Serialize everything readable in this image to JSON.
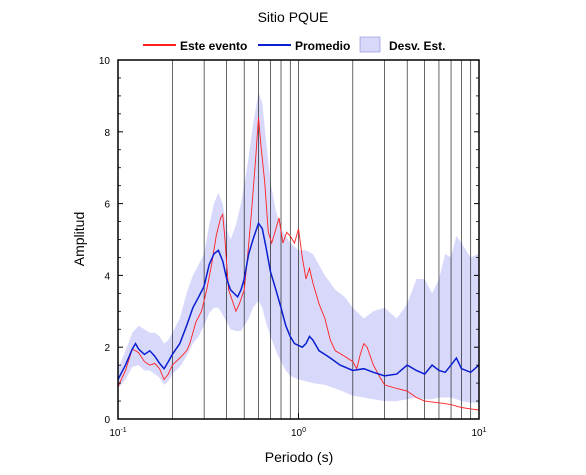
{
  "chart_data": {
    "type": "line",
    "title": "Sitio PQUE",
    "xlabel": "Periodo (s)",
    "ylabel": "Amplitud",
    "xscale": "log",
    "xlim": [
      0.1,
      10
    ],
    "ylim": [
      0,
      10
    ],
    "x_tick_labels": [
      {
        "base": "10",
        "exp": "-1"
      },
      {
        "base": "10",
        "exp": "0"
      },
      {
        "base": "10",
        "exp": "1"
      }
    ],
    "y_ticks": [
      0,
      2,
      4,
      6,
      8,
      10
    ],
    "grid": "vertical log lines",
    "legend_position": "top",
    "series": [
      {
        "name": "Este evento",
        "color": "#ff2020",
        "kind": "line",
        "points": [
          [
            0.1,
            0.9
          ],
          [
            0.11,
            1.35
          ],
          [
            0.12,
            1.95
          ],
          [
            0.13,
            1.85
          ],
          [
            0.14,
            1.6
          ],
          [
            0.15,
            1.5
          ],
          [
            0.16,
            1.55
          ],
          [
            0.17,
            1.4
          ],
          [
            0.18,
            1.1
          ],
          [
            0.19,
            1.25
          ],
          [
            0.2,
            1.5
          ],
          [
            0.22,
            1.7
          ],
          [
            0.24,
            1.9
          ],
          [
            0.25,
            2.1
          ],
          [
            0.27,
            2.7
          ],
          [
            0.29,
            3.0
          ],
          [
            0.31,
            3.6
          ],
          [
            0.33,
            4.3
          ],
          [
            0.35,
            5.1
          ],
          [
            0.37,
            5.6
          ],
          [
            0.38,
            5.7
          ],
          [
            0.39,
            5.1
          ],
          [
            0.41,
            3.6
          ],
          [
            0.43,
            3.3
          ],
          [
            0.45,
            3.0
          ],
          [
            0.47,
            3.2
          ],
          [
            0.5,
            3.6
          ],
          [
            0.52,
            4.4
          ],
          [
            0.55,
            5.8
          ],
          [
            0.58,
            7.3
          ],
          [
            0.6,
            8.4
          ],
          [
            0.62,
            7.6
          ],
          [
            0.65,
            6.6
          ],
          [
            0.68,
            5.2
          ],
          [
            0.71,
            4.9
          ],
          [
            0.74,
            5.2
          ],
          [
            0.78,
            5.6
          ],
          [
            0.82,
            4.9
          ],
          [
            0.86,
            5.2
          ],
          [
            0.9,
            5.1
          ],
          [
            0.95,
            4.9
          ],
          [
            1.0,
            5.3
          ],
          [
            1.05,
            4.5
          ],
          [
            1.1,
            3.9
          ],
          [
            1.15,
            4.2
          ],
          [
            1.2,
            3.8
          ],
          [
            1.3,
            3.2
          ],
          [
            1.4,
            2.8
          ],
          [
            1.5,
            2.2
          ],
          [
            1.6,
            1.9
          ],
          [
            1.8,
            1.75
          ],
          [
            2.0,
            1.6
          ],
          [
            2.1,
            1.4
          ],
          [
            2.2,
            1.8
          ],
          [
            2.3,
            2.1
          ],
          [
            2.4,
            2.0
          ],
          [
            2.6,
            1.5
          ],
          [
            2.8,
            1.2
          ],
          [
            3.0,
            0.95
          ],
          [
            3.5,
            0.85
          ],
          [
            4.0,
            0.78
          ],
          [
            4.5,
            0.6
          ],
          [
            5.0,
            0.5
          ],
          [
            6.0,
            0.45
          ],
          [
            7.0,
            0.4
          ],
          [
            8.0,
            0.32
          ],
          [
            9.0,
            0.28
          ],
          [
            10.0,
            0.25
          ]
        ]
      },
      {
        "name": "Promedio",
        "color": "#0a1fd0",
        "kind": "line",
        "points": [
          [
            0.1,
            1.1
          ],
          [
            0.11,
            1.5
          ],
          [
            0.12,
            1.95
          ],
          [
            0.125,
            2.1
          ],
          [
            0.13,
            1.95
          ],
          [
            0.14,
            1.8
          ],
          [
            0.15,
            1.9
          ],
          [
            0.16,
            1.75
          ],
          [
            0.17,
            1.55
          ],
          [
            0.18,
            1.4
          ],
          [
            0.19,
            1.6
          ],
          [
            0.2,
            1.8
          ],
          [
            0.22,
            2.1
          ],
          [
            0.24,
            2.6
          ],
          [
            0.26,
            3.1
          ],
          [
            0.28,
            3.4
          ],
          [
            0.3,
            3.7
          ],
          [
            0.32,
            4.3
          ],
          [
            0.34,
            4.6
          ],
          [
            0.36,
            4.7
          ],
          [
            0.38,
            4.4
          ],
          [
            0.4,
            3.9
          ],
          [
            0.42,
            3.6
          ],
          [
            0.44,
            3.5
          ],
          [
            0.46,
            3.4
          ],
          [
            0.48,
            3.6
          ],
          [
            0.5,
            3.9
          ],
          [
            0.53,
            4.6
          ],
          [
            0.56,
            5.0
          ],
          [
            0.6,
            5.45
          ],
          [
            0.63,
            5.3
          ],
          [
            0.66,
            4.8
          ],
          [
            0.7,
            4.1
          ],
          [
            0.75,
            3.6
          ],
          [
            0.8,
            3.1
          ],
          [
            0.85,
            2.6
          ],
          [
            0.9,
            2.3
          ],
          [
            0.95,
            2.1
          ],
          [
            1.0,
            2.05
          ],
          [
            1.05,
            2.0
          ],
          [
            1.1,
            2.1
          ],
          [
            1.15,
            2.3
          ],
          [
            1.2,
            2.2
          ],
          [
            1.3,
            1.9
          ],
          [
            1.4,
            1.8
          ],
          [
            1.5,
            1.7
          ],
          [
            1.7,
            1.5
          ],
          [
            2.0,
            1.35
          ],
          [
            2.3,
            1.4
          ],
          [
            2.6,
            1.3
          ],
          [
            3.0,
            1.2
          ],
          [
            3.5,
            1.25
          ],
          [
            4.0,
            1.5
          ],
          [
            4.5,
            1.35
          ],
          [
            5.0,
            1.25
          ],
          [
            5.5,
            1.5
          ],
          [
            6.0,
            1.35
          ],
          [
            6.5,
            1.3
          ],
          [
            7.0,
            1.5
          ],
          [
            7.5,
            1.7
          ],
          [
            8.0,
            1.4
          ],
          [
            9.0,
            1.3
          ],
          [
            10.0,
            1.5
          ]
        ]
      },
      {
        "name": "Desv. Est.",
        "color": "#d8d8fb",
        "kind": "band",
        "x": [
          0.1,
          0.11,
          0.12,
          0.13,
          0.14,
          0.15,
          0.16,
          0.17,
          0.18,
          0.19,
          0.2,
          0.22,
          0.24,
          0.26,
          0.28,
          0.3,
          0.32,
          0.34,
          0.36,
          0.38,
          0.4,
          0.42,
          0.45,
          0.48,
          0.5,
          0.53,
          0.56,
          0.6,
          0.63,
          0.66,
          0.7,
          0.75,
          0.8,
          0.85,
          0.9,
          1.0,
          1.1,
          1.2,
          1.4,
          1.6,
          1.8,
          2.0,
          2.3,
          2.6,
          3.0,
          3.5,
          4.0,
          4.5,
          5.0,
          5.5,
          6.0,
          6.5,
          7.0,
          7.5,
          8.0,
          9.0,
          10.0
        ],
        "upper": [
          1.4,
          1.9,
          2.4,
          2.6,
          2.5,
          2.4,
          2.4,
          2.3,
          2.1,
          2.2,
          2.4,
          2.8,
          3.5,
          4.0,
          4.3,
          4.6,
          5.4,
          6.0,
          6.3,
          6.0,
          5.3,
          5.0,
          5.4,
          6.0,
          6.5,
          7.3,
          8.2,
          9.1,
          8.8,
          7.8,
          6.6,
          5.8,
          5.3,
          5.1,
          4.9,
          4.7,
          4.7,
          4.6,
          4.0,
          3.6,
          3.4,
          3.1,
          2.8,
          3.0,
          3.1,
          2.8,
          3.2,
          3.9,
          3.9,
          3.5,
          3.9,
          4.6,
          4.5,
          5.1,
          4.9,
          4.5,
          4.6
        ],
        "lower": [
          0.85,
          1.1,
          1.45,
          1.5,
          1.35,
          1.35,
          1.25,
          1.15,
          0.95,
          1.05,
          1.25,
          1.45,
          1.75,
          2.1,
          2.3,
          2.6,
          2.95,
          3.1,
          3.1,
          2.9,
          2.7,
          2.5,
          2.45,
          2.45,
          2.6,
          2.8,
          3.1,
          3.3,
          3.1,
          2.7,
          2.3,
          1.9,
          1.6,
          1.35,
          1.2,
          1.1,
          1.05,
          1.0,
          0.95,
          0.85,
          0.75,
          0.65,
          0.6,
          0.55,
          0.5,
          0.5,
          0.55,
          0.6,
          0.55,
          0.55,
          0.6,
          0.6,
          0.6,
          0.55,
          0.5,
          0.45,
          0.45
        ]
      }
    ]
  }
}
